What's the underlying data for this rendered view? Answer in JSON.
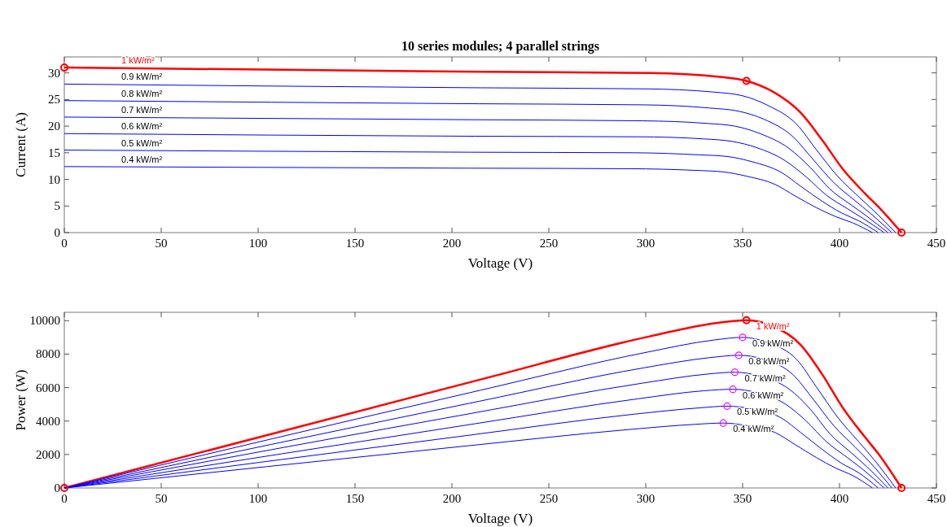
{
  "chart_data": [
    {
      "type": "line",
      "title": "10 series modules; 4 parallel strings",
      "xlabel": "Voltage (V)",
      "ylabel": "Current (A)",
      "xlim": [
        0,
        450
      ],
      "xticks": [
        0,
        50,
        100,
        150,
        200,
        250,
        300,
        350,
        400,
        450
      ],
      "ylim": [
        0,
        33
      ],
      "yticks": [
        0,
        5,
        10,
        15,
        20,
        25,
        30
      ],
      "grid": false,
      "line_style": "solid",
      "series": [
        {
          "name": "1 kW/m²",
          "color": "#ff0000",
          "x": [
            0,
            216,
            302,
            337,
            352,
            365,
            380,
            391,
            402,
            413,
            421,
            432
          ],
          "values": [
            31,
            30.2,
            30.0,
            29.3,
            28.5,
            26.6,
            22.5,
            17.4,
            11.8,
            7.4,
            4.5,
            0
          ]
        },
        {
          "name": "0.9 kW/m²",
          "color": "#0000ff",
          "x": [
            0,
            215,
            300,
            335,
            350,
            363,
            378,
            388,
            399,
            410,
            418,
            429
          ],
          "values": [
            27.9,
            27.2,
            27.0,
            26.4,
            25.7,
            23.9,
            20.3,
            15.6,
            10.6,
            6.7,
            4.0,
            0
          ]
        },
        {
          "name": "0.8 kW/m²",
          "color": "#0000ff",
          "x": [
            0,
            214,
            299,
            333,
            348,
            361,
            376,
            386,
            397,
            408,
            416,
            427
          ],
          "values": [
            24.8,
            24.2,
            24.0,
            23.4,
            22.8,
            21.3,
            18.0,
            13.9,
            9.4,
            6.0,
            3.6,
            0
          ]
        },
        {
          "name": "0.7 kW/m²",
          "color": "#0000ff",
          "x": [
            0,
            213,
            298,
            332,
            346,
            359,
            374,
            385,
            395,
            406,
            414,
            425
          ],
          "values": [
            21.7,
            21.2,
            21.0,
            20.5,
            20.0,
            18.6,
            15.8,
            12.2,
            8.2,
            5.2,
            3.1,
            0
          ]
        },
        {
          "name": "0.6 kW/m²",
          "color": "#0000ff",
          "x": [
            0,
            212,
            296,
            330,
            345,
            357,
            372,
            383,
            393,
            404,
            412,
            423
          ],
          "values": [
            18.6,
            18.1,
            18.0,
            17.6,
            17.1,
            16.0,
            13.5,
            10.4,
            7.1,
            4.5,
            2.7,
            0
          ]
        },
        {
          "name": "0.5 kW/m²",
          "color": "#0000ff",
          "x": [
            0,
            210,
            294,
            328,
            342,
            355,
            370,
            380,
            391,
            401,
            410,
            420
          ],
          "values": [
            15.5,
            15.1,
            15.0,
            14.6,
            14.3,
            13.3,
            11.3,
            8.7,
            5.9,
            3.7,
            2.2,
            0
          ]
        },
        {
          "name": "0.4 kW/m²",
          "color": "#0000ff",
          "x": [
            0,
            209,
            292,
            325,
            340,
            352,
            367,
            377,
            388,
            398,
            407,
            417
          ],
          "values": [
            12.4,
            12.1,
            12.0,
            11.7,
            11.4,
            10.6,
            9.0,
            6.9,
            4.7,
            3.0,
            1.8,
            0
          ]
        },
        {
          "type": "scatter",
          "marker": "circle",
          "color": "#ff0000",
          "x": [
            0,
            352,
            432
          ],
          "values": [
            31,
            28.5,
            0
          ]
        }
      ]
    },
    {
      "type": "line",
      "xlabel": "Voltage (V)",
      "ylabel": "Power (W)",
      "xlim": [
        0,
        450
      ],
      "xticks": [
        0,
        50,
        100,
        150,
        200,
        250,
        300,
        350,
        400,
        450
      ],
      "ylim": [
        0,
        10500
      ],
      "yticks": [
        0,
        2000,
        4000,
        6000,
        8000,
        10000
      ],
      "grid": false,
      "line_style": "solid",
      "series": [
        {
          "name": "1 kW/m²",
          "color": "#ff0000",
          "x": [
            0,
            216,
            302,
            337,
            352,
            365,
            380,
            391,
            402,
            413,
            421,
            432
          ],
          "values": [
            0,
            6520,
            9060,
            9870,
            10030,
            9710,
            8550,
            6800,
            4740,
            3060,
            1900,
            0
          ]
        },
        {
          "name": "0.9 kW/m²",
          "color": "#0000ff",
          "x": [
            0,
            215,
            300,
            335,
            350,
            363,
            378,
            388,
            399,
            410,
            418,
            429
          ],
          "values": [
            0,
            5850,
            8100,
            8840,
            9000,
            8680,
            7670,
            6050,
            4230,
            2750,
            1670,
            0
          ]
        },
        {
          "name": "0.8 kW/m²",
          "color": "#0000ff",
          "x": [
            0,
            214,
            299,
            333,
            348,
            361,
            376,
            386,
            397,
            408,
            416,
            427
          ],
          "values": [
            0,
            5180,
            7180,
            7790,
            7930,
            7690,
            6770,
            5370,
            3730,
            2450,
            1500,
            0
          ]
        },
        {
          "name": "0.7 kW/m²",
          "color": "#0000ff",
          "x": [
            0,
            213,
            298,
            332,
            346,
            359,
            374,
            385,
            395,
            406,
            414,
            425
          ],
          "values": [
            0,
            4520,
            6260,
            6810,
            6920,
            6680,
            5910,
            4700,
            3240,
            2110,
            1280,
            0
          ]
        },
        {
          "name": "0.6 kW/m²",
          "color": "#0000ff",
          "x": [
            0,
            212,
            296,
            330,
            345,
            357,
            372,
            383,
            393,
            404,
            412,
            423
          ],
          "values": [
            0,
            3840,
            5330,
            5810,
            5900,
            5710,
            5020,
            3980,
            2790,
            1820,
            1110,
            0
          ]
        },
        {
          "name": "0.5 kW/m²",
          "color": "#0000ff",
          "x": [
            0,
            210,
            294,
            328,
            342,
            355,
            370,
            380,
            391,
            401,
            410,
            420
          ],
          "values": [
            0,
            3170,
            4410,
            4790,
            4890,
            4720,
            4180,
            3310,
            2310,
            1480,
            900,
            0
          ]
        },
        {
          "name": "0.4 kW/m²",
          "color": "#0000ff",
          "x": [
            0,
            209,
            292,
            325,
            340,
            352,
            367,
            377,
            388,
            398,
            407,
            417
          ],
          "values": [
            0,
            2530,
            3500,
            3800,
            3880,
            3730,
            3300,
            2600,
            1820,
            1190,
            730,
            0
          ]
        },
        {
          "type": "scatter",
          "marker": "circle",
          "color": "#ff0000",
          "x": [
            0,
            352,
            432
          ],
          "values": [
            0,
            10030,
            0
          ]
        },
        {
          "type": "scatter",
          "marker": "circle",
          "color": "#ff00ff",
          "x": [
            350,
            348,
            346,
            345,
            342,
            340
          ],
          "values": [
            9000,
            7930,
            6920,
            5900,
            4890,
            3880
          ]
        }
      ]
    }
  ]
}
